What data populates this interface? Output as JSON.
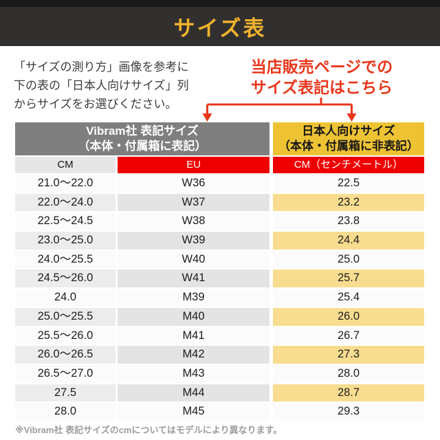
{
  "page": {
    "title": "サイズ表",
    "intro_lines": [
      "「サイズの測り方」画像を参考に",
      "下の表の「日本人向けサイズ」列",
      "からサイズをお選びください。"
    ],
    "callout_lines": [
      "当店販売ページでの",
      "サイズ表記はこちら"
    ],
    "footnote": "※Vibram社 表記サイズのcmについてはモデルにより異なります。"
  },
  "colors": {
    "top_strip": "#191919",
    "title_band": "#322f2f",
    "title_text": "#f0b42d",
    "callout_red": "#e8371c",
    "header_red": "#ee0000",
    "header_gray": "#7f7f7f",
    "header_yellow": "#edc334",
    "highlight_yellow": "#f8dd90",
    "row_white": "#fbfbfb",
    "row_gray": "#e8e8e8"
  },
  "table": {
    "group_headers": [
      {
        "line1": "Vibram社 表記サイズ",
        "line2": "（本体・付属箱に表記）"
      },
      {
        "line1": "日本人向けサイズ",
        "line2": "（本体・付属箱に非表記）"
      }
    ],
    "column_headers": [
      "CM",
      "EU",
      "CM（センチメートル）"
    ],
    "rows": [
      {
        "cm_range": "21.0～22.0",
        "eu": "W36",
        "jp_cm": "22.5",
        "highlight": false
      },
      {
        "cm_range": "22.0～24.0",
        "eu": "W37",
        "jp_cm": "23.2",
        "highlight": true
      },
      {
        "cm_range": "22.5～24.5",
        "eu": "W38",
        "jp_cm": "23.8",
        "highlight": false
      },
      {
        "cm_range": "23.0～25.0",
        "eu": "W39",
        "jp_cm": "24.4",
        "highlight": true
      },
      {
        "cm_range": "24.0～25.5",
        "eu": "W40",
        "jp_cm": "25.0",
        "highlight": false
      },
      {
        "cm_range": "24.5～26.0",
        "eu": "W41",
        "jp_cm": "25.7",
        "highlight": true
      },
      {
        "cm_range": "24.0",
        "eu": "M39",
        "jp_cm": "25.4",
        "highlight": false
      },
      {
        "cm_range": "25.0～25.5",
        "eu": "M40",
        "jp_cm": "26.0",
        "highlight": true
      },
      {
        "cm_range": "25.5～26.0",
        "eu": "M41",
        "jp_cm": "26.7",
        "highlight": false
      },
      {
        "cm_range": "26.0～26.5",
        "eu": "M42",
        "jp_cm": "27.3",
        "highlight": true
      },
      {
        "cm_range": "26.5～27.0",
        "eu": "M43",
        "jp_cm": "28.0",
        "highlight": false
      },
      {
        "cm_range": "27.5",
        "eu": "M44",
        "jp_cm": "28.7",
        "highlight": true
      },
      {
        "cm_range": "28.0",
        "eu": "M45",
        "jp_cm": "29.3",
        "highlight": false
      }
    ]
  }
}
